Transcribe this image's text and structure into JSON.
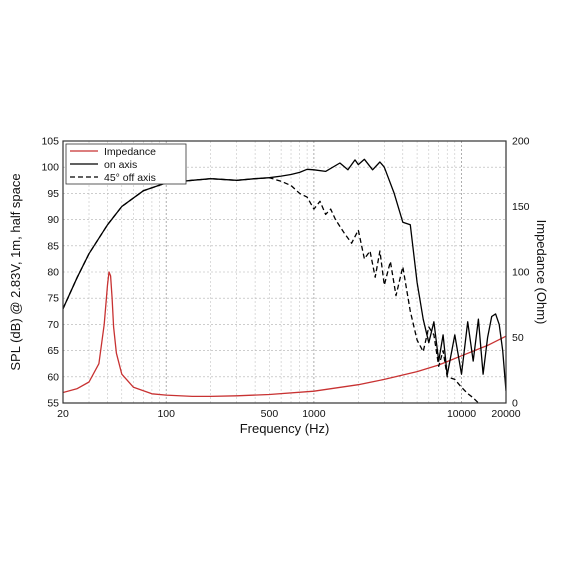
{
  "chart_data": {
    "type": "line",
    "xlabel": "Frequency (Hz)",
    "ylabel": "SPL (dB) @ 2.83V, 1m, half space",
    "y2label": "Impedance (Ohm)",
    "xscale": "log",
    "xlim": [
      20,
      20000
    ],
    "ylim": [
      55,
      105
    ],
    "y2lim": [
      0,
      200
    ],
    "grid": true,
    "legend_position": "top-left",
    "xticks": [
      "20",
      "100",
      "500",
      "1000",
      "10000",
      "20000"
    ],
    "yticks": [
      "55",
      "60",
      "65",
      "70",
      "75",
      "80",
      "85",
      "90",
      "95",
      "100",
      "105"
    ],
    "y2ticks": [
      "0",
      "50",
      "100",
      "150",
      "200"
    ],
    "series": [
      {
        "name": "Impedance",
        "axis": "right",
        "color": "#c83232",
        "style": "solid",
        "x": [
          20,
          25,
          30,
          35,
          38,
          40,
          41,
          42,
          43,
          44,
          46,
          50,
          60,
          80,
          100,
          150,
          200,
          300,
          500,
          1000,
          2000,
          3000,
          5000,
          7000,
          10000,
          15000,
          20000
        ],
        "y": [
          8,
          11,
          16,
          30,
          60,
          90,
          100,
          97,
          80,
          58,
          38,
          22,
          12,
          7,
          6,
          5,
          5,
          5.5,
          6.5,
          9,
          14,
          18,
          24,
          29,
          36,
          44,
          51
        ]
      },
      {
        "name": "on axis",
        "axis": "left",
        "color": "#000000",
        "style": "solid",
        "x": [
          20,
          25,
          30,
          40,
          50,
          70,
          100,
          150,
          200,
          300,
          400,
          500,
          600,
          700,
          800,
          900,
          1000,
          1200,
          1500,
          1700,
          1900,
          2000,
          2200,
          2500,
          2800,
          3000,
          3500,
          4000,
          4500,
          5000,
          5500,
          6000,
          6500,
          7000,
          7500,
          8000,
          9000,
          10000,
          11000,
          12000,
          13000,
          14000,
          15000,
          16000,
          17000,
          18000,
          19000,
          20000
        ],
        "y": [
          73,
          79,
          83.5,
          89,
          92.5,
          95.5,
          97,
          97.5,
          97.8,
          97.5,
          97.8,
          98,
          98.3,
          98.6,
          99,
          99.6,
          99.5,
          99.2,
          100.8,
          99.5,
          101.4,
          100.5,
          101.5,
          99.5,
          101,
          100,
          95,
          89.5,
          89,
          78,
          71,
          66.5,
          70.5,
          63,
          68,
          60.3,
          68,
          60.5,
          70.5,
          63,
          71,
          60.5,
          67.5,
          71.5,
          72,
          70,
          65,
          57.3
        ]
      },
      {
        "name": "45° off axis",
        "axis": "left",
        "color": "#000000",
        "style": "dashed",
        "x": [
          20,
          25,
          30,
          40,
          50,
          70,
          100,
          150,
          200,
          300,
          400,
          500,
          600,
          700,
          800,
          900,
          1000,
          1100,
          1200,
          1300,
          1400,
          1600,
          1800,
          2000,
          2200,
          2400,
          2600,
          2800,
          3000,
          3300,
          3600,
          4000,
          4500,
          5000,
          5500,
          6000,
          6500,
          7000,
          7500,
          8000,
          9000,
          10000,
          11000,
          12000,
          13000
        ],
        "y": [
          73,
          79,
          83.5,
          89,
          92.5,
          95.5,
          97,
          97.5,
          97.8,
          97.5,
          97.8,
          98,
          97.3,
          96.5,
          95,
          94.3,
          92,
          93.5,
          91,
          92,
          90,
          87.5,
          85.5,
          88,
          82.5,
          84,
          79,
          84,
          77.5,
          82,
          75.5,
          81,
          72.5,
          67,
          64.8,
          69.5,
          68,
          62,
          65,
          60,
          59.5,
          58,
          56.8,
          56,
          55
        ]
      }
    ]
  }
}
